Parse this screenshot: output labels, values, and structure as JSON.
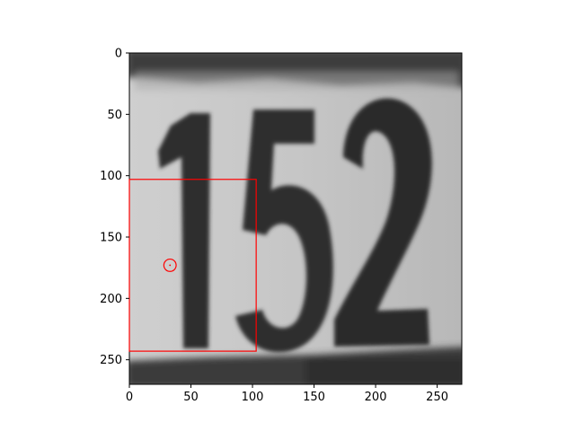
{
  "figure": {
    "type": "image-with-annotations",
    "image_description": "grayscale crop of a painted sign showing digits",
    "digits_shown": "152",
    "x_axis": {
      "range": [
        0,
        270
      ],
      "ticks": [
        0,
        50,
        100,
        150,
        200,
        250
      ],
      "tick_labels": [
        "0",
        "50",
        "100",
        "150",
        "200",
        "250"
      ]
    },
    "y_axis": {
      "range": [
        0,
        270
      ],
      "inverted": true,
      "ticks": [
        0,
        50,
        100,
        150,
        200,
        250
      ],
      "tick_labels": [
        "0",
        "50",
        "100",
        "150",
        "200",
        "250"
      ]
    },
    "annotations": {
      "rectangle": {
        "x0": 0,
        "y0": 103,
        "x1": 103,
        "y1": 243,
        "color": "#ff0000"
      },
      "circle": {
        "cx": 33,
        "cy": 173,
        "r": 5,
        "color": "#ff0000"
      }
    },
    "colors": {
      "background_light": "#c8c8c8",
      "digit_dark": "#2e2e2e",
      "border_dark": "#3a3a3a",
      "annotation": "#ff0000"
    }
  }
}
